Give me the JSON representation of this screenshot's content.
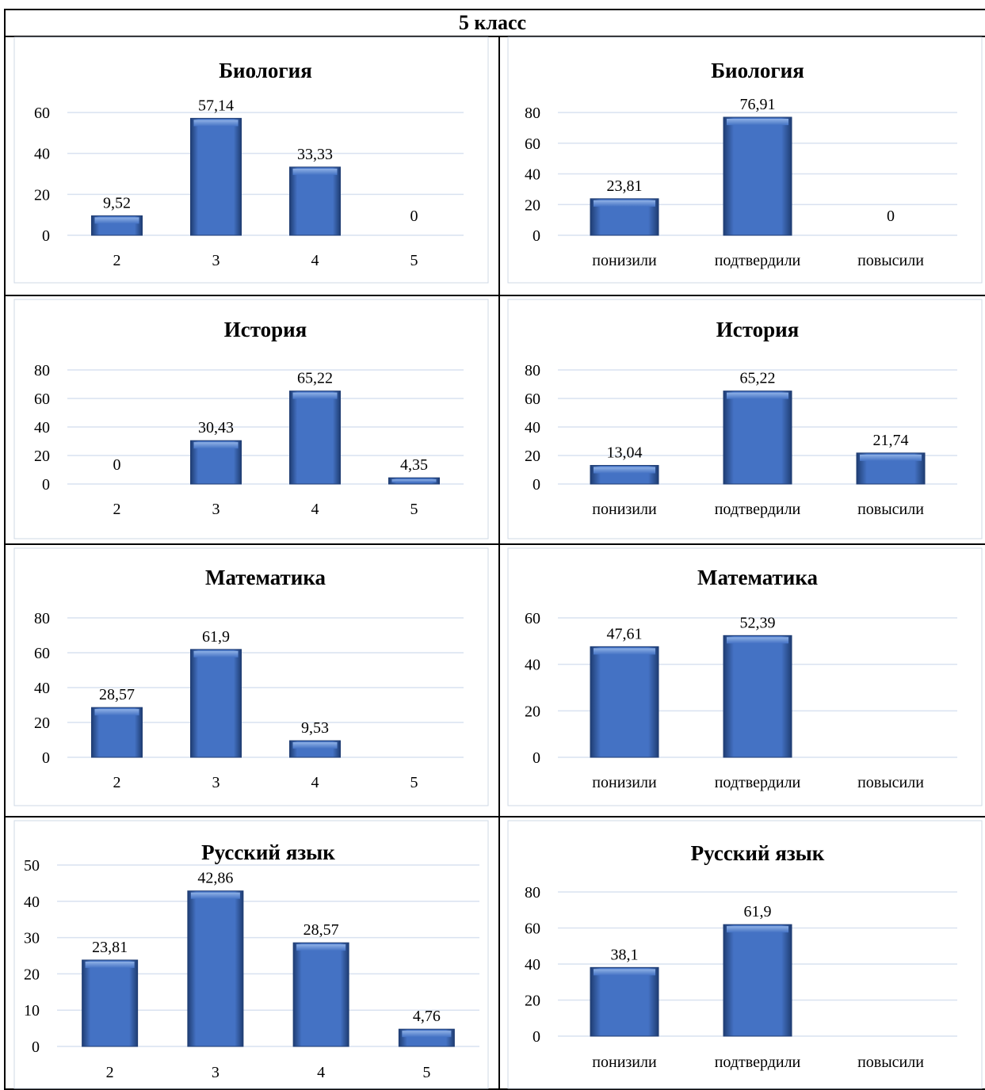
{
  "page_title": "5 класс",
  "colors": {
    "bar_main": "#4472c4",
    "bar_dark": "#1f3d73",
    "bar_light": "#8fb1e6",
    "grid": "#d9e2f0"
  },
  "chart_data": [
    {
      "id": "bio-grades",
      "type": "bar",
      "title": "Биология",
      "categories": [
        "2",
        "3",
        "4",
        "5"
      ],
      "values": [
        9.52,
        57.14,
        33.33,
        0
      ],
      "labels": [
        "9,52",
        "57,14",
        "33,33",
        "0"
      ],
      "yticks": [
        "0",
        "20",
        "40",
        "60"
      ],
      "ylim": [
        0,
        60
      ]
    },
    {
      "id": "bio-confirm",
      "type": "bar",
      "title": "Биология",
      "categories": [
        "понизили",
        "подтвердили",
        "повысили"
      ],
      "values": [
        23.81,
        76.91,
        0
      ],
      "labels": [
        "23,81",
        "76,91",
        "0"
      ],
      "yticks": [
        "0",
        "20",
        "40",
        "60",
        "80"
      ],
      "ylim": [
        0,
        80
      ]
    },
    {
      "id": "hist-grades",
      "type": "bar",
      "title": "История",
      "categories": [
        "2",
        "3",
        "4",
        "5"
      ],
      "values": [
        0,
        30.43,
        65.22,
        4.35
      ],
      "labels": [
        "0",
        "30,43",
        "65,22",
        "4,35"
      ],
      "yticks": [
        "0",
        "20",
        "40",
        "60",
        "80"
      ],
      "ylim": [
        0,
        80
      ]
    },
    {
      "id": "hist-confirm",
      "type": "bar",
      "title": "История",
      "categories": [
        "понизили",
        "подтвердили",
        "повысили"
      ],
      "values": [
        13.04,
        65.22,
        21.74
      ],
      "labels": [
        "13,04",
        "65,22",
        "21,74"
      ],
      "yticks": [
        "0",
        "20",
        "40",
        "60",
        "80"
      ],
      "ylim": [
        0,
        80
      ]
    },
    {
      "id": "math-grades",
      "type": "bar",
      "title": "Математика",
      "categories": [
        "2",
        "3",
        "4",
        "5"
      ],
      "values": [
        28.57,
        61.9,
        9.53,
        0
      ],
      "labels": [
        "28,57",
        "61,9",
        "9,53",
        ""
      ],
      "yticks": [
        "0",
        "20",
        "40",
        "60",
        "80"
      ],
      "ylim": [
        0,
        80
      ]
    },
    {
      "id": "math-confirm",
      "type": "bar",
      "title": "Математика",
      "categories": [
        "понизили",
        "подтвердили",
        "повысили"
      ],
      "values": [
        47.61,
        52.39,
        0
      ],
      "labels": [
        "47,61",
        "52,39",
        ""
      ],
      "yticks": [
        "0",
        "20",
        "40",
        "60"
      ],
      "ylim": [
        0,
        60
      ]
    },
    {
      "id": "rus-grades",
      "type": "bar",
      "title": "Русский язык",
      "categories": [
        "2",
        "3",
        "4",
        "5"
      ],
      "values": [
        23.81,
        42.86,
        28.57,
        4.76
      ],
      "labels": [
        "23,81",
        "42,86",
        "28,57",
        "4,76"
      ],
      "yticks": [
        "0",
        "10",
        "20",
        "30",
        "40",
        "50"
      ],
      "ylim": [
        0,
        50
      ]
    },
    {
      "id": "rus-confirm",
      "type": "bar",
      "title": "Русский язык",
      "categories": [
        "понизили",
        "подтвердили",
        "повысили"
      ],
      "values": [
        38.1,
        61.9,
        0
      ],
      "labels": [
        "38,1",
        "61,9",
        ""
      ],
      "yticks": [
        "0",
        "20",
        "40",
        "60",
        "80"
      ],
      "ylim": [
        0,
        80
      ]
    }
  ]
}
